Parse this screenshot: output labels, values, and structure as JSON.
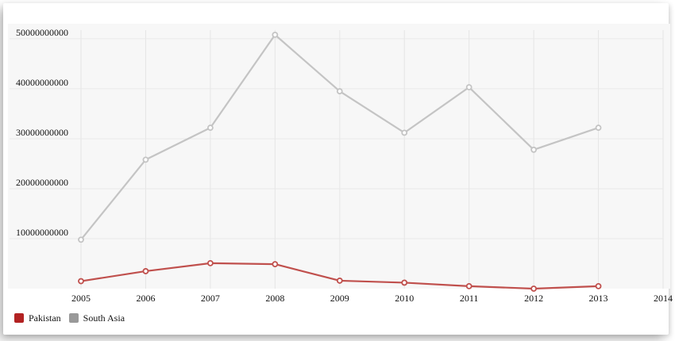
{
  "chart_data": {
    "type": "line",
    "title": "",
    "xlabel": "",
    "ylabel": "",
    "x": [
      2005,
      2006,
      2007,
      2008,
      2009,
      2010,
      2011,
      2012,
      2013
    ],
    "x_ticks": [
      "2005",
      "2006",
      "2007",
      "2008",
      "2009",
      "2010",
      "2011",
      "2012",
      "2013",
      "2014"
    ],
    "xlim": [
      2005,
      2014
    ],
    "y_ticks": [
      "10000000000",
      "20000000000",
      "30000000000",
      "40000000000",
      "50000000000"
    ],
    "ylim": [
      0,
      53000000000
    ],
    "grid": true,
    "legend_position": "bottom-left",
    "series": [
      {
        "name": "Pakistan",
        "color": "#c0504d",
        "legend_color": "#b22222",
        "values": [
          1500000000,
          3500000000,
          5100000000,
          4900000000,
          1600000000,
          1200000000,
          500000000,
          0,
          500000000
        ]
      },
      {
        "name": "South Asia",
        "color": "#c4c4c4",
        "legend_color": "#999999",
        "values": [
          9800000000,
          25800000000,
          32200000000,
          50800000000,
          39500000000,
          31200000000,
          40300000000,
          27800000000,
          32200000000
        ]
      }
    ]
  }
}
